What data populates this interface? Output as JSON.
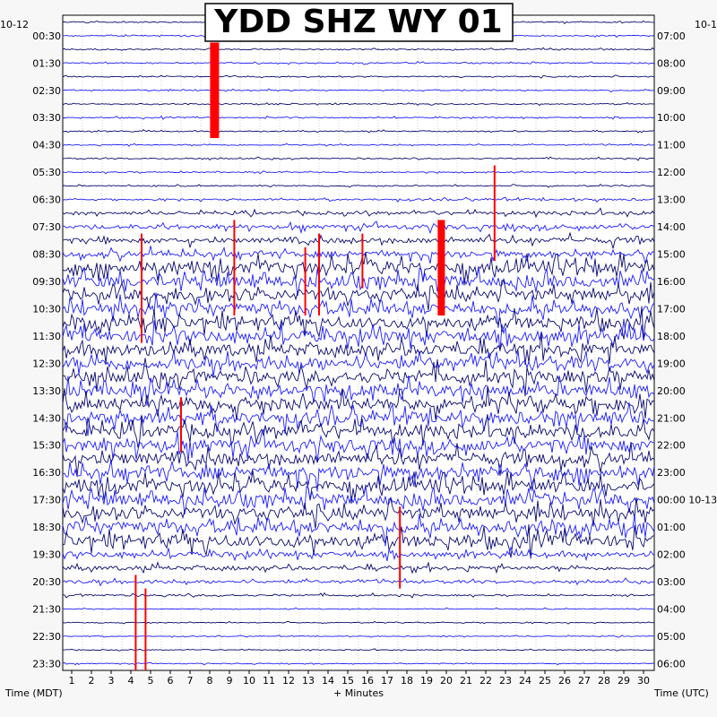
{
  "chart_data": {
    "type": "helicorder",
    "title": "YDD SHZ WY 01",
    "xlabel": "+ Minutes",
    "ylabel_left": "Time (MDT)",
    "ylabel_right": "Time (UTC)",
    "corner_left": "10-12",
    "corner_right": "10-1",
    "xlim": [
      0,
      30
    ],
    "x_ticks": [
      1,
      2,
      3,
      4,
      5,
      6,
      7,
      8,
      9,
      10,
      11,
      12,
      13,
      14,
      15,
      16,
      17,
      18,
      19,
      20,
      21,
      22,
      23,
      24,
      25,
      26,
      27,
      28,
      29,
      30
    ],
    "rows": 48,
    "left_times": [
      "00:30",
      "01:30",
      "02:30",
      "03:30",
      "04:30",
      "05:30",
      "06:30",
      "07:30",
      "08:30",
      "09:30",
      "10:30",
      "11:30",
      "12:30",
      "13:30",
      "14:30",
      "15:30",
      "16:30",
      "17:30",
      "18:30",
      "19:30",
      "20:30",
      "21:30",
      "22:30",
      "23:30"
    ],
    "right_times": [
      "07:00",
      "08:00",
      "09:00",
      "10:00",
      "11:00",
      "12:00",
      "13:00",
      "14:00",
      "15:00",
      "16:00",
      "17:00",
      "18:00",
      "19:00",
      "20:00",
      "21:00",
      "22:00",
      "23:00",
      "00:00 10-13",
      "01:00",
      "02:00",
      "03:00",
      "04:00",
      "05:00",
      "06:00"
    ],
    "colors": {
      "trace_dark": "#0a0a6e",
      "trace_blue": "#1e1eff",
      "clipped": "#ff0000",
      "grid": "#bbbbbb"
    },
    "grid": true
  }
}
